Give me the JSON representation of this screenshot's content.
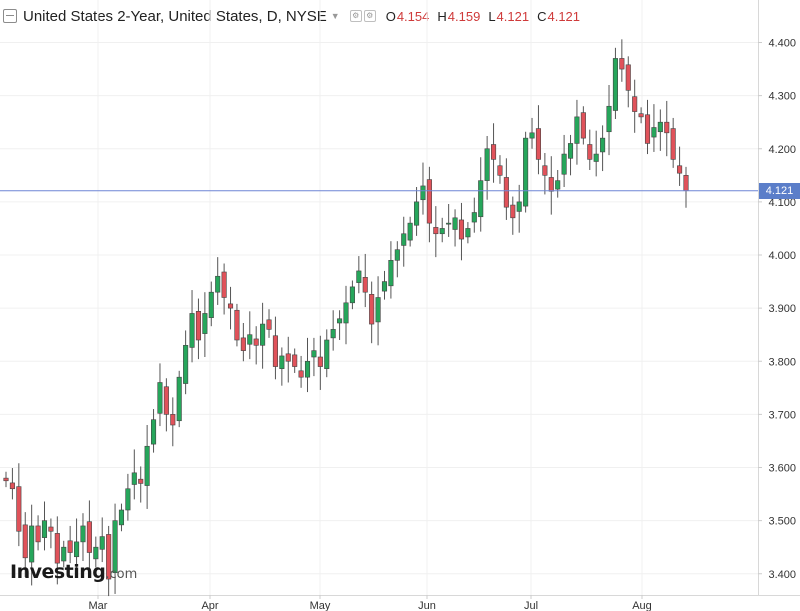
{
  "header": {
    "title": "United States 2-Year, United States, D, NYSE",
    "open_label": "O",
    "open": "4.154",
    "high_label": "H",
    "high": "4.159",
    "low_label": "L",
    "low": "4.121",
    "close_label": "C",
    "close": "4.121"
  },
  "logo": {
    "brand": "Investing",
    "domain": ".com"
  },
  "current_price": "4.121",
  "colors": {
    "up": "#26a65b",
    "down": "#e0525a",
    "price_line": "#6f86d6",
    "grid": "#f0f0f0"
  },
  "chart_data": {
    "type": "candlestick",
    "ylim": [
      3.36,
      4.48
    ],
    "y_ticks": [
      "4.400",
      "4.300",
      "4.200",
      "4.100",
      "4.000",
      "3.900",
      "3.800",
      "3.700",
      "3.600",
      "3.500",
      "3.400"
    ],
    "x_ticks": [
      "Mar",
      "Apr",
      "May",
      "Jun",
      "Jul",
      "Aug"
    ],
    "current_price": 4.121,
    "closes": [
      3.575,
      3.56,
      3.48,
      3.43,
      3.49,
      3.46,
      3.5,
      3.48,
      3.42,
      3.45,
      3.44,
      3.46,
      3.49,
      3.44,
      3.45,
      3.47,
      3.39,
      3.5,
      3.52,
      3.56,
      3.59,
      3.57,
      3.64,
      3.69,
      3.76,
      3.7,
      3.68,
      3.77,
      3.83,
      3.89,
      3.84,
      3.89,
      3.93,
      3.96,
      3.92,
      3.9,
      3.84,
      3.82,
      3.85,
      3.83,
      3.87,
      3.86,
      3.79,
      3.81,
      3.8,
      3.79,
      3.77,
      3.8,
      3.82,
      3.79,
      3.84,
      3.86,
      3.88,
      3.91,
      3.94,
      3.97,
      3.93,
      3.87,
      3.92,
      3.95,
      3.99,
      4.01,
      4.04,
      4.06,
      4.1,
      4.13,
      4.06,
      4.04,
      4.05,
      4.06,
      4.07,
      4.03,
      4.05,
      4.08,
      4.14,
      4.2,
      4.18,
      4.15,
      4.09,
      4.07,
      4.1,
      4.22,
      4.23,
      4.18,
      4.15,
      4.12,
      4.14,
      4.19,
      4.21,
      4.26,
      4.22,
      4.18,
      4.19,
      4.22,
      4.28,
      4.37,
      4.35,
      4.31,
      4.27,
      4.26,
      4.21,
      4.24,
      4.25,
      4.23,
      4.18,
      4.154,
      4.121
    ]
  }
}
